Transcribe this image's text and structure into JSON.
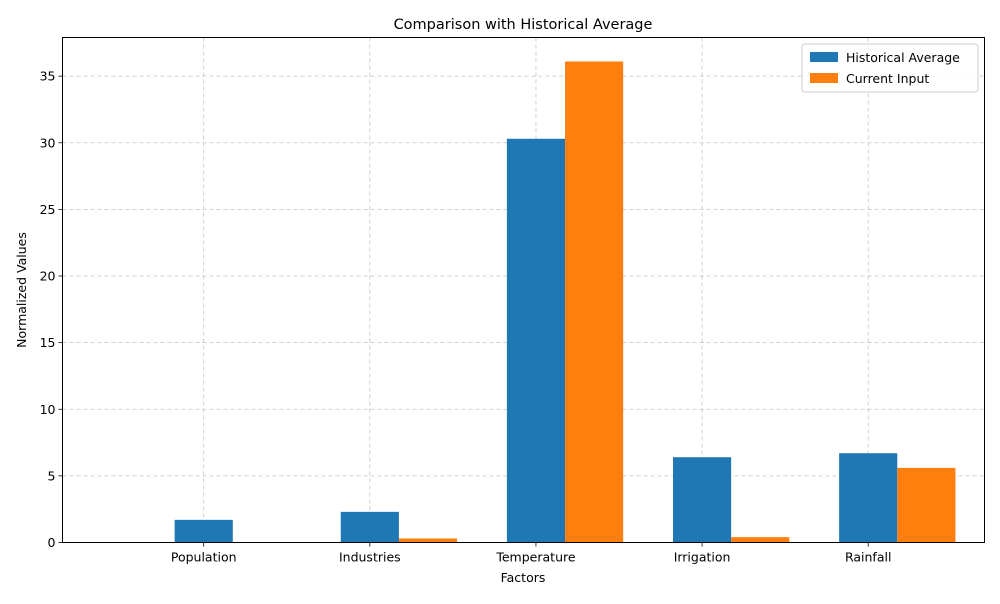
{
  "chart_data": {
    "type": "bar",
    "title": "Comparison with Historical Average",
    "xlabel": "Factors",
    "ylabel": "Normalized Values",
    "categories": [
      "Population",
      "Industries",
      "Temperature",
      "Irrigation",
      "Rainfall"
    ],
    "series": [
      {
        "name": "Historical Average",
        "color": "#1f77b4",
        "values": [
          1.7,
          2.3,
          30.3,
          6.4,
          6.7
        ]
      },
      {
        "name": "Current Input",
        "color": "#ff7f0e",
        "values": [
          0.0,
          0.3,
          36.1,
          0.4,
          5.6
        ]
      }
    ],
    "ylim": [
      0,
      37.9
    ],
    "yticks": [
      0,
      5,
      10,
      15,
      20,
      25,
      30,
      35
    ],
    "grid": true,
    "legend_position": "top-right"
  }
}
